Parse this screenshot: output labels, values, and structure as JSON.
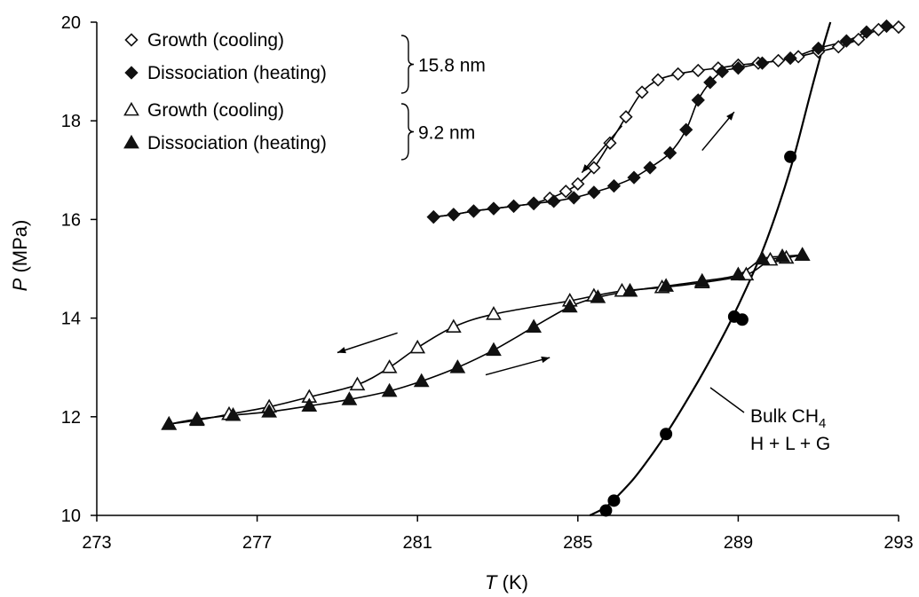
{
  "chart_data": {
    "type": "scatter",
    "xlabel": {
      "var": "T",
      "unit": " (K)"
    },
    "ylabel": {
      "var": "P",
      "unit": " (MPa)"
    },
    "xlim": [
      273,
      293
    ],
    "ylim": [
      10,
      20
    ],
    "xticks": [
      273,
      277,
      281,
      285,
      289,
      293
    ],
    "yticks": [
      10,
      12,
      14,
      16,
      18,
      20
    ],
    "grid": false,
    "legend": {
      "position": "top-left",
      "entries": [
        {
          "label": "Growth (cooling)",
          "marker": "diamond-open",
          "group": "15.8 nm"
        },
        {
          "label": "Dissociation (heating)",
          "marker": "diamond-filled",
          "group": "15.8 nm"
        },
        {
          "label": "Growth (cooling)",
          "marker": "triangle-open",
          "group": "9.2 nm"
        },
        {
          "label": "Dissociation (heating)",
          "marker": "triangle-filled",
          "group": "9.2 nm"
        }
      ],
      "groups": [
        "15.8 nm",
        "9.2 nm"
      ]
    },
    "series": [
      {
        "pore": "15.8 nm",
        "process": "Growth (cooling)",
        "marker": "diamond-open",
        "x": [
          293.0,
          292.5,
          292.0,
          291.5,
          291.0,
          290.5,
          290.0,
          289.5,
          289.0,
          288.5,
          288.0,
          287.5,
          287.0,
          286.6,
          286.2,
          285.8,
          285.4,
          285.0,
          284.7,
          284.3,
          283.9,
          283.4,
          282.9,
          282.4,
          281.9,
          281.4
        ],
        "y": [
          19.9,
          19.85,
          19.65,
          19.5,
          19.4,
          19.3,
          19.22,
          19.17,
          19.13,
          19.07,
          19.02,
          18.95,
          18.83,
          18.58,
          18.08,
          17.55,
          17.05,
          16.72,
          16.57,
          16.43,
          16.33,
          16.27,
          16.22,
          16.17,
          16.1,
          16.05
        ]
      },
      {
        "pore": "15.8 nm",
        "process": "Dissociation (heating)",
        "marker": "diamond-filled",
        "x": [
          281.4,
          281.9,
          282.4,
          282.9,
          283.4,
          283.9,
          284.4,
          284.9,
          285.4,
          285.9,
          286.4,
          286.8,
          287.3,
          287.7,
          288.0,
          288.3,
          288.6,
          289.0,
          289.6,
          290.3,
          291.0,
          291.7,
          292.2,
          292.7
        ],
        "y": [
          16.05,
          16.1,
          16.17,
          16.22,
          16.27,
          16.32,
          16.37,
          16.44,
          16.55,
          16.68,
          16.85,
          17.05,
          17.35,
          17.82,
          18.42,
          18.78,
          19.0,
          19.07,
          19.17,
          19.27,
          19.47,
          19.62,
          19.8,
          19.92
        ]
      },
      {
        "pore": "9.2 nm",
        "process": "Growth (cooling)",
        "marker": "triangle-open",
        "x": [
          290.6,
          290.2,
          289.8,
          289.2,
          288.1,
          287.1,
          286.1,
          285.4,
          284.8,
          282.9,
          281.9,
          281.0,
          280.3,
          279.5,
          278.3,
          277.3,
          276.3,
          275.5,
          274.8
        ],
        "y": [
          15.28,
          15.22,
          15.18,
          14.88,
          14.72,
          14.62,
          14.55,
          14.45,
          14.35,
          14.08,
          13.82,
          13.4,
          13.0,
          12.65,
          12.4,
          12.2,
          12.05,
          11.93,
          11.85
        ]
      },
      {
        "pore": "9.2 nm",
        "process": "Dissociation (heating)",
        "marker": "triangle-filled",
        "x": [
          274.8,
          275.5,
          276.4,
          277.3,
          278.3,
          279.3,
          280.3,
          281.1,
          282.0,
          282.9,
          283.9,
          284.8,
          285.5,
          286.3,
          287.2,
          288.1,
          289.0,
          289.6,
          290.1,
          290.6
        ],
        "y": [
          11.85,
          11.95,
          12.03,
          12.1,
          12.22,
          12.35,
          12.52,
          12.72,
          13.0,
          13.35,
          13.82,
          14.23,
          14.42,
          14.55,
          14.65,
          14.75,
          14.88,
          15.2,
          15.25,
          15.28
        ]
      },
      {
        "name": "Bulk CH4 H + L + G",
        "marker": "circle-filled",
        "x": [
          285.7,
          285.9,
          287.2,
          288.9,
          289.1,
          290.3
        ],
        "y": [
          10.1,
          10.3,
          11.65,
          14.03,
          13.97,
          17.27
        ],
        "curve_x": [
          285.3,
          285.7,
          286.0,
          286.4,
          286.8,
          287.2,
          287.6,
          288.0,
          288.4,
          288.8,
          289.2,
          289.6,
          290.0,
          290.4,
          290.8,
          291.1,
          291.3
        ],
        "curve_y": [
          10.0,
          10.17,
          10.4,
          10.75,
          11.18,
          11.65,
          12.17,
          12.72,
          13.3,
          13.92,
          14.6,
          15.35,
          16.25,
          17.3,
          18.55,
          19.45,
          20.0
        ]
      }
    ],
    "arrows": [
      {
        "from": [
          286.1,
          17.9
        ],
        "to": [
          285.1,
          16.95
        ]
      },
      {
        "from": [
          288.1,
          17.4
        ],
        "to": [
          288.9,
          18.18
        ]
      },
      {
        "from": [
          280.5,
          13.7
        ],
        "to": [
          279.0,
          13.3
        ]
      },
      {
        "from": [
          282.7,
          12.85
        ],
        "to": [
          284.3,
          13.2
        ]
      }
    ],
    "annotations": {
      "bulk_label": {
        "text": "Bulk CH",
        "sub": "4",
        "line2": "H + L + G"
      }
    }
  }
}
